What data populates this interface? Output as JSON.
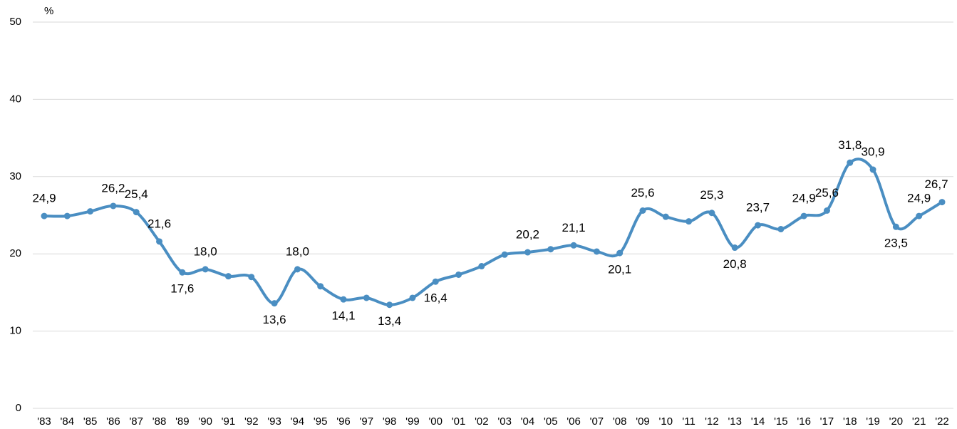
{
  "chart_data": {
    "type": "line",
    "y_label": "%",
    "categories": [
      "'83",
      "'84",
      "'85",
      "'86",
      "'87",
      "'88",
      "'89",
      "'90",
      "'91",
      "'92",
      "'93",
      "'94",
      "'95",
      "'96",
      "'97",
      "'98",
      "'99",
      "'00",
      "'01",
      "'02",
      "'03",
      "'04",
      "'05",
      "'06",
      "'07",
      "'08",
      "'09",
      "'10",
      "'11",
      "'12",
      "'13",
      "'14",
      "'15",
      "'16",
      "'17",
      "'18",
      "'19",
      "'20",
      "'21",
      "'22"
    ],
    "series": [
      {
        "color": "#4a8ec2",
        "values": [
          24.9,
          24.9,
          25.5,
          26.2,
          25.4,
          21.6,
          17.6,
          18.0,
          17.1,
          17.0,
          13.6,
          18.0,
          15.8,
          14.1,
          14.3,
          13.4,
          14.3,
          16.4,
          17.3,
          18.4,
          19.9,
          20.2,
          20.6,
          21.1,
          20.3,
          20.1,
          25.6,
          24.8,
          24.2,
          25.3,
          20.8,
          23.7,
          23.2,
          24.9,
          25.6,
          31.8,
          30.9,
          23.5,
          24.9,
          26.7
        ],
        "value_labels": [
          "24,9",
          null,
          null,
          "26,2",
          "25,4",
          "21,6",
          "17,6",
          "18,0",
          null,
          null,
          "13,6",
          "18,0",
          null,
          "14,1",
          null,
          "13,4",
          null,
          "16,4",
          null,
          null,
          null,
          "20,2",
          null,
          "21,1",
          null,
          "20,1",
          "25,6",
          null,
          null,
          "25,3",
          "20,8",
          "23,7",
          null,
          "24,9",
          "25,6",
          "31,8",
          "30,9",
          "23,5",
          "24,9",
          "26,7"
        ]
      }
    ],
    "ylim": [
      0,
      50
    ],
    "yticks": [
      0,
      10,
      20,
      30,
      40,
      50
    ],
    "grid": true
  }
}
